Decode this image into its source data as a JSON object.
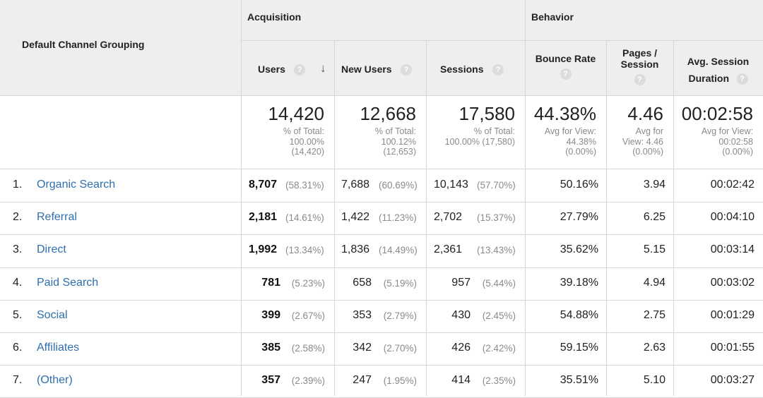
{
  "header": {
    "dimension": "Default Channel Grouping",
    "group_acquisition": "Acquisition",
    "group_behavior": "Behavior",
    "col_users": "Users",
    "col_new_users": "New Users",
    "col_sessions": "Sessions",
    "col_bounce_rate": "Bounce Rate",
    "col_pages_line1": "Pages /",
    "col_pages_line2": "Session",
    "col_duration_line1": "Avg. Session",
    "col_duration_line2": "Duration",
    "help_glyph": "?",
    "sort_glyph": "↓"
  },
  "totals": {
    "users": "14,420",
    "users_sub1": "% of Total:",
    "users_sub2": "100.00%",
    "users_sub3": "(14,420)",
    "new_users": "12,668",
    "new_users_sub1": "% of Total:",
    "new_users_sub2": "100.12%",
    "new_users_sub3": "(12,653)",
    "sessions": "17,580",
    "sessions_sub1": "% of Total:",
    "sessions_sub2": "100.00% (17,580)",
    "bounce_rate": "44.38%",
    "bounce_sub1": "Avg for View:",
    "bounce_sub2": "44.38%",
    "bounce_sub3": "(0.00%)",
    "pages": "4.46",
    "pages_sub1": "Avg for",
    "pages_sub2": "View: 4.46",
    "pages_sub3": "(0.00%)",
    "duration": "00:02:58",
    "duration_sub1": "Avg for View:",
    "duration_sub2": "00:02:58",
    "duration_sub3": "(0.00%)"
  },
  "rows": [
    {
      "num": "1.",
      "channel": "Organic Search",
      "users": "8,707",
      "users_pct": "(58.31%)",
      "new_users": "7,688",
      "new_users_pct": "(60.69%)",
      "sessions": "10,143",
      "sessions_pct": "(57.70%)",
      "bounce": "50.16%",
      "pages": "3.94",
      "duration": "00:02:42"
    },
    {
      "num": "2.",
      "channel": "Referral",
      "users": "2,181",
      "users_pct": "(14.61%)",
      "new_users": "1,422",
      "new_users_pct": "(11.23%)",
      "sessions": "2,702",
      "sessions_pct": "(15.37%)",
      "bounce": "27.79%",
      "pages": "6.25",
      "duration": "00:04:10"
    },
    {
      "num": "3.",
      "channel": "Direct",
      "users": "1,992",
      "users_pct": "(13.34%)",
      "new_users": "1,836",
      "new_users_pct": "(14.49%)",
      "sessions": "2,361",
      "sessions_pct": "(13.43%)",
      "bounce": "35.62%",
      "pages": "5.15",
      "duration": "00:03:14"
    },
    {
      "num": "4.",
      "channel": "Paid Search",
      "users": "781",
      "users_pct": "(5.23%)",
      "new_users": "658",
      "new_users_pct": "(5.19%)",
      "sessions": "957",
      "sessions_pct": "(5.44%)",
      "bounce": "39.18%",
      "pages": "4.94",
      "duration": "00:03:02"
    },
    {
      "num": "5.",
      "channel": "Social",
      "users": "399",
      "users_pct": "(2.67%)",
      "new_users": "353",
      "new_users_pct": "(2.79%)",
      "sessions": "430",
      "sessions_pct": "(2.45%)",
      "bounce": "54.88%",
      "pages": "2.75",
      "duration": "00:01:29"
    },
    {
      "num": "6.",
      "channel": "Affiliates",
      "users": "385",
      "users_pct": "(2.58%)",
      "new_users": "342",
      "new_users_pct": "(2.70%)",
      "sessions": "426",
      "sessions_pct": "(2.42%)",
      "bounce": "59.15%",
      "pages": "2.63",
      "duration": "00:01:55"
    },
    {
      "num": "7.",
      "channel": "(Other)",
      "users": "357",
      "users_pct": "(2.39%)",
      "new_users": "247",
      "new_users_pct": "(1.95%)",
      "sessions": "414",
      "sessions_pct": "(2.35%)",
      "bounce": "35.51%",
      "pages": "5.10",
      "duration": "00:03:27"
    }
  ]
}
